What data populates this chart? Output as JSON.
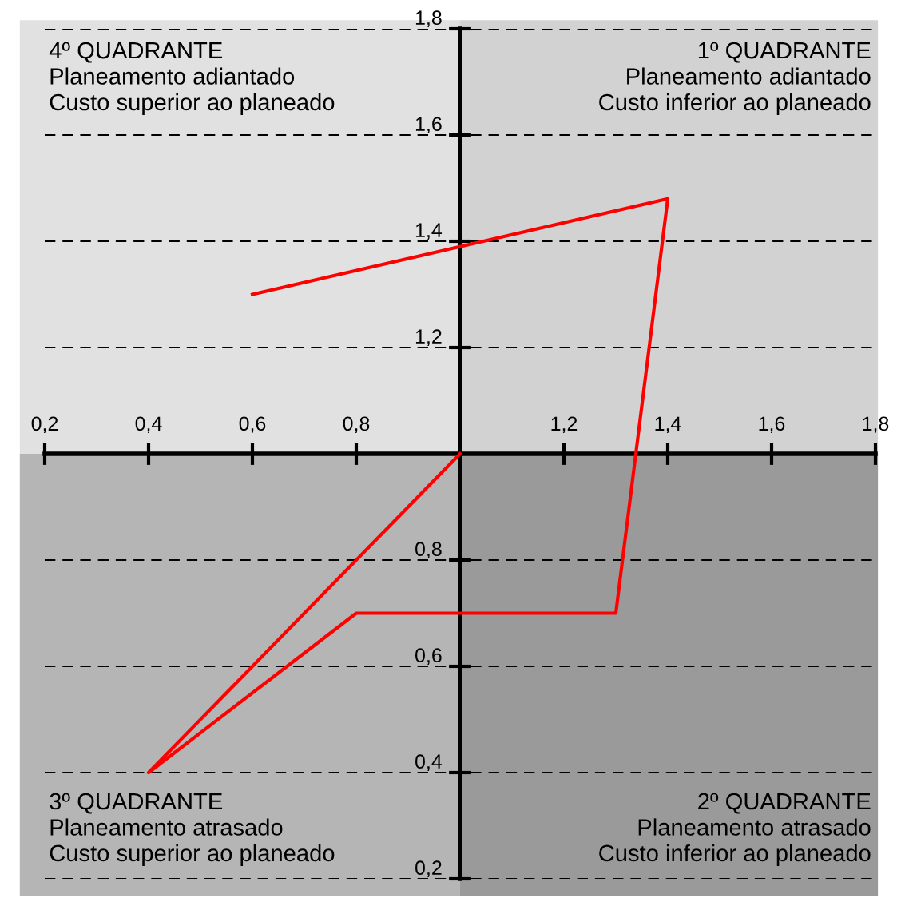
{
  "chart_data": {
    "type": "line",
    "x": [
      0.6,
      1.4,
      1.3,
      0.8,
      0.4,
      1.0
    ],
    "series": [
      {
        "color": "#ff0000",
        "values": [
          1.3,
          1.48,
          0.7,
          0.7,
          0.4,
          1.0
        ]
      }
    ],
    "xlim": [
      0.2,
      1.8
    ],
    "xticks": [
      {
        "value": 0.2,
        "label": "0,2"
      },
      {
        "value": 0.4,
        "label": "0,4"
      },
      {
        "value": 0.6,
        "label": "0,6"
      },
      {
        "value": 0.8,
        "label": "0,8"
      },
      {
        "value": 1.2,
        "label": "1,2"
      },
      {
        "value": 1.4,
        "label": "1,4"
      },
      {
        "value": 1.6,
        "label": "1,6"
      },
      {
        "value": 1.8,
        "label": "1,8"
      }
    ],
    "ylim": [
      0.2,
      1.8
    ],
    "yticks": [
      {
        "value": 0.2,
        "label": "0,2"
      },
      {
        "value": 0.4,
        "label": "0,4"
      },
      {
        "value": 0.6,
        "label": "0,6"
      },
      {
        "value": 0.8,
        "label": "0,8"
      },
      {
        "value": 1.2,
        "label": "1,2"
      },
      {
        "value": 1.4,
        "label": "1,4"
      },
      {
        "value": 1.6,
        "label": "1,6"
      },
      {
        "value": 1.8,
        "label": "1,8"
      }
    ],
    "grid": "y",
    "line_style": "solid",
    "annotations": [
      "4º QUADRANTE\nPlaneamento adiantado\nCusto superior ao planeado",
      "1º QUADRANTE\nPlaneamento adiantado\nCusto inferior ao planeado",
      "3º QUADRANTE\nPlaneamento atrasado\nCusto superior ao planeado",
      "2º QUADRANTE\nPlaneamento atrasado\nCusto inferior ao planeado"
    ]
  }
}
